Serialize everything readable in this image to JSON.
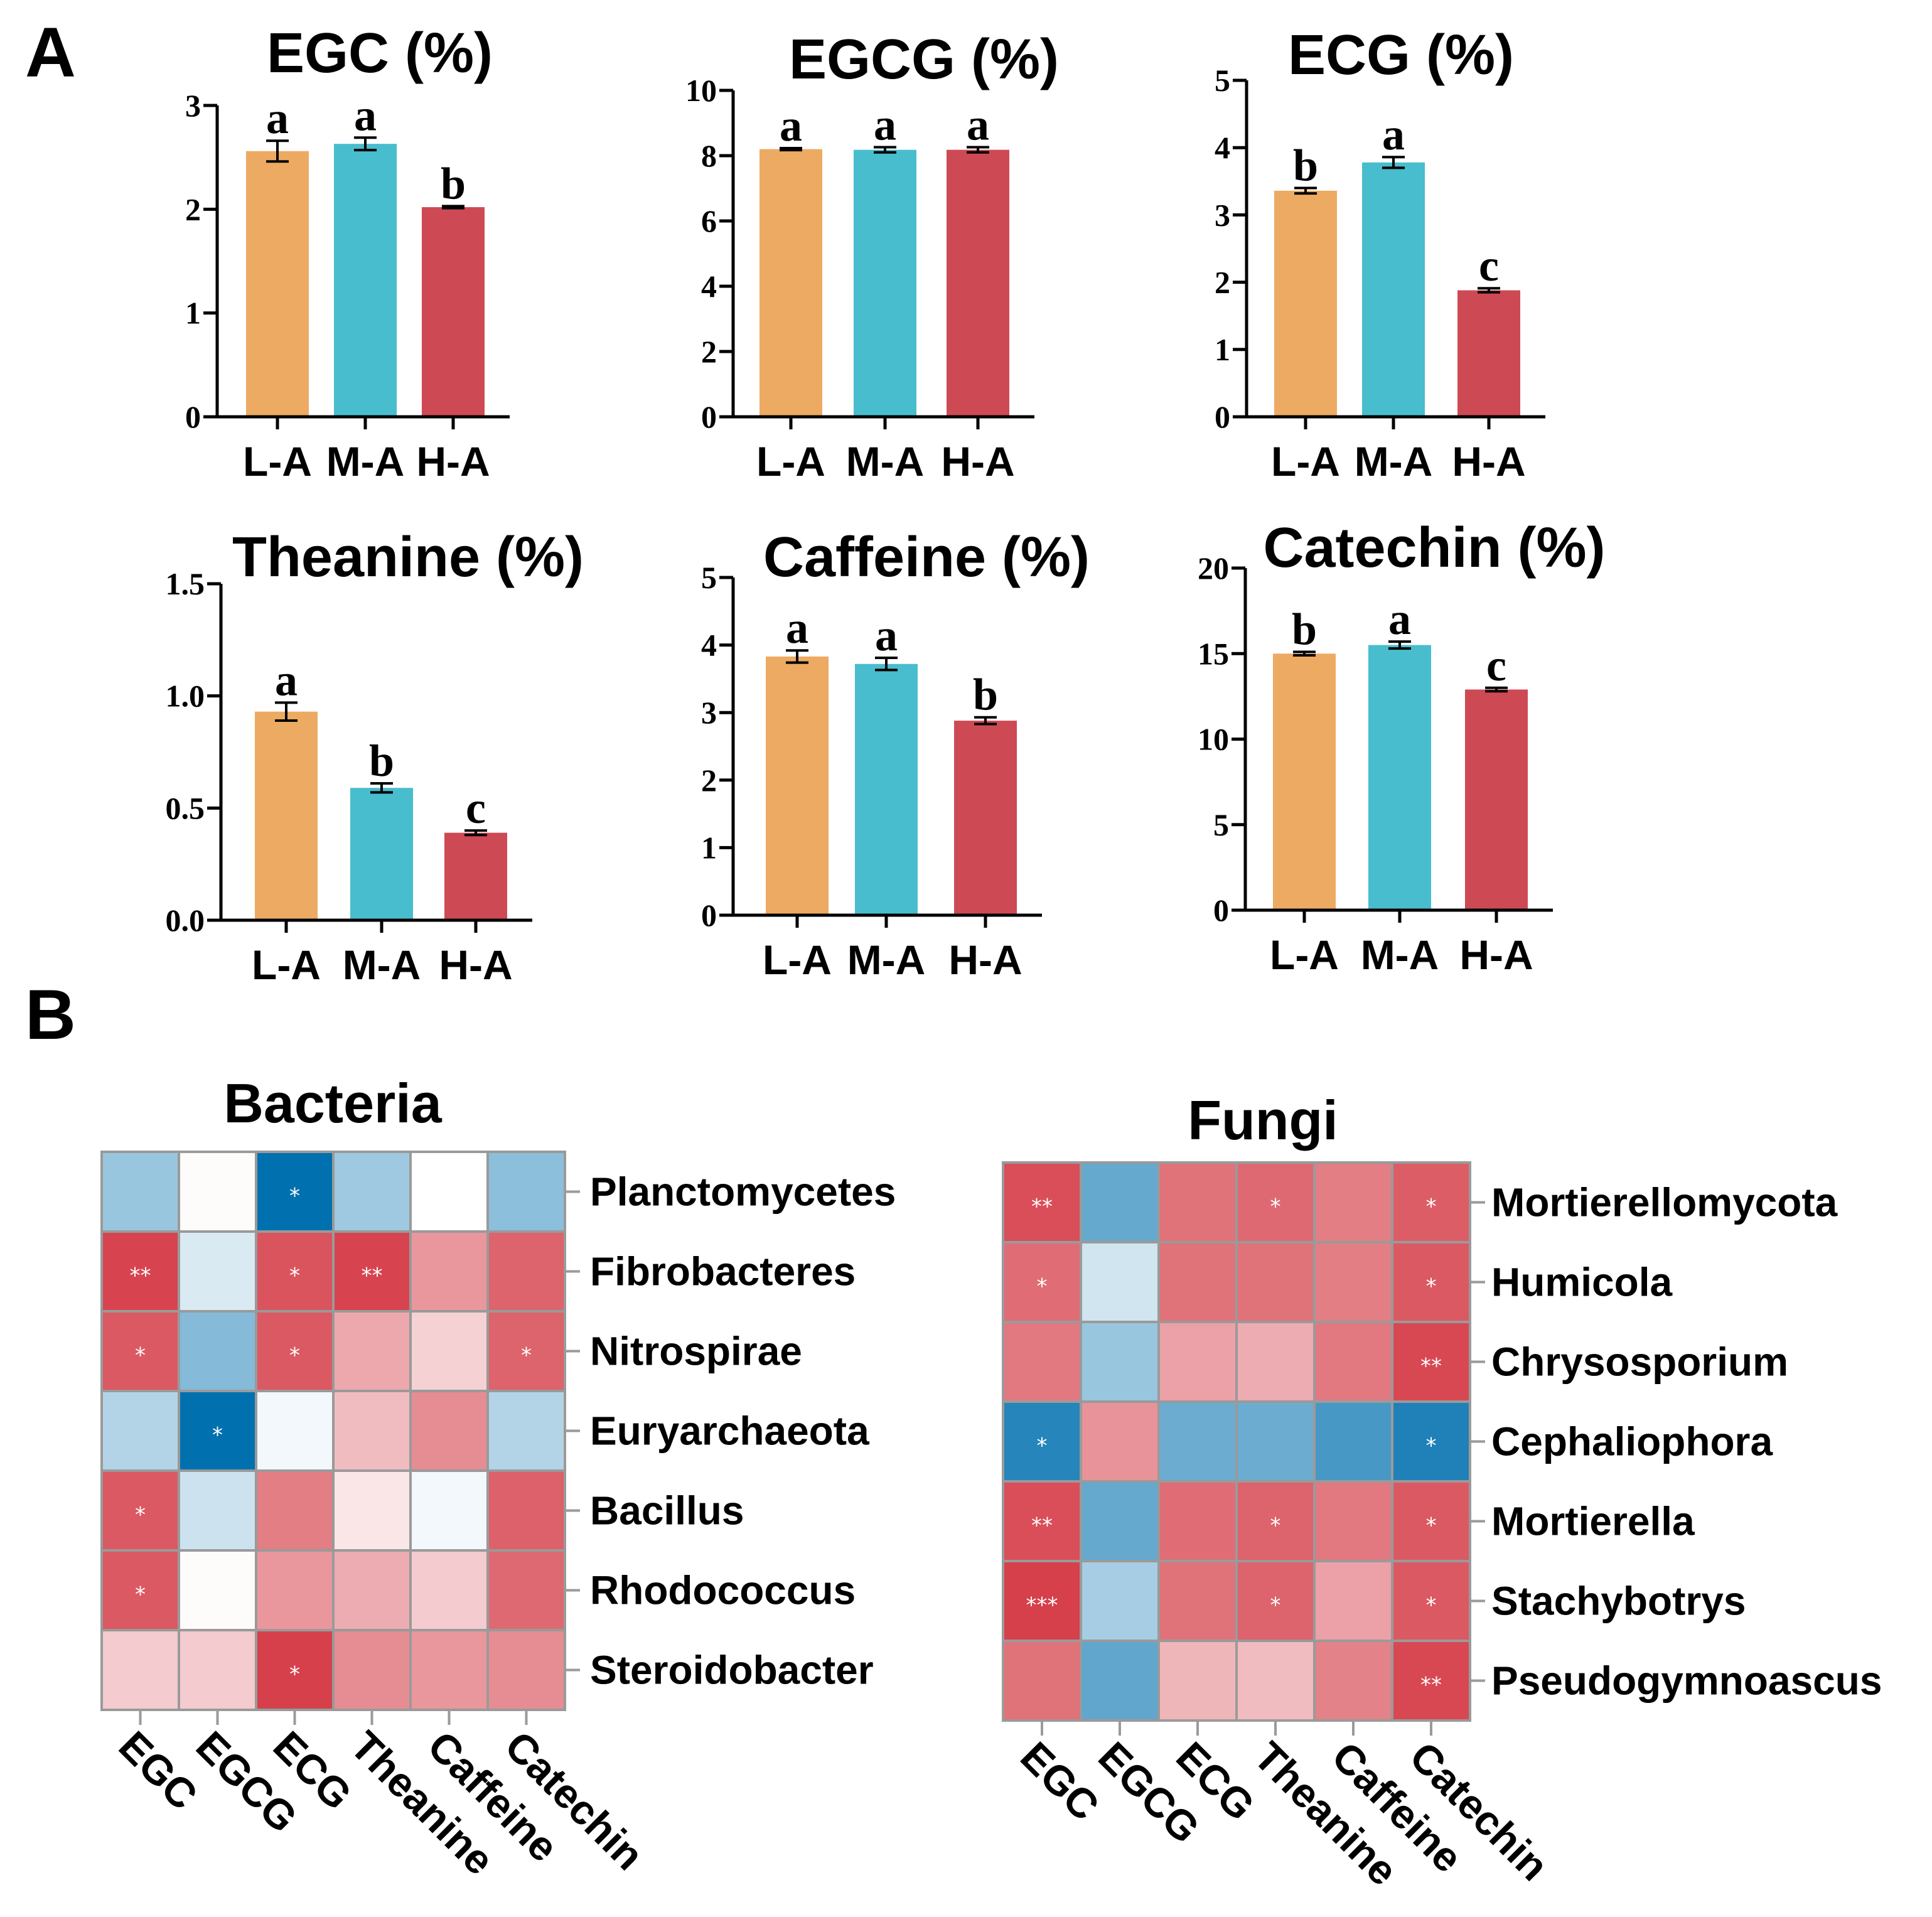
{
  "figure": {
    "panel_a_label": "A",
    "panel_b_label": "B"
  },
  "colors": {
    "L-A": "#EDAA63",
    "M-A": "#48BDCD",
    "H-A": "#CD4A55",
    "heat_neg": "#0070AE",
    "heat_pos": "#D22F3B",
    "heat_grid": "#9A9A9A"
  },
  "chart_data": [
    {
      "type": "bar",
      "title": "EGC (%)",
      "categories": [
        "L-A",
        "M-A",
        "H-A"
      ],
      "values": [
        2.56,
        2.63,
        2.02
      ],
      "errors": [
        0.1,
        0.06,
        0.01
      ],
      "letters": [
        "a",
        "a",
        "b"
      ],
      "ylim": [
        0,
        3
      ],
      "yticks": [
        "0",
        "1",
        "2",
        "3"
      ],
      "ytick_values": [
        0,
        1,
        2,
        3
      ]
    },
    {
      "type": "bar",
      "title": "EGCG (%)",
      "categories": [
        "L-A",
        "M-A",
        "H-A"
      ],
      "values": [
        8.2,
        8.18,
        8.18
      ],
      "errors": [
        0.03,
        0.08,
        0.08
      ],
      "letters": [
        "a",
        "a",
        "a"
      ],
      "ylim": [
        0,
        10
      ],
      "yticks": [
        "0",
        "2",
        "4",
        "6",
        "8",
        "10"
      ],
      "ytick_values": [
        0,
        2,
        4,
        6,
        8,
        10
      ]
    },
    {
      "type": "bar",
      "title": "ECG (%)",
      "categories": [
        "L-A",
        "M-A",
        "H-A"
      ],
      "values": [
        3.36,
        3.78,
        1.88
      ],
      "errors": [
        0.04,
        0.08,
        0.03
      ],
      "letters": [
        "b",
        "a",
        "c"
      ],
      "ylim": [
        0,
        5
      ],
      "yticks": [
        "0",
        "1",
        "2",
        "3",
        "4",
        "5"
      ],
      "ytick_values": [
        0,
        1,
        2,
        3,
        4,
        5
      ]
    },
    {
      "type": "bar",
      "title": "Theanine (%)",
      "categories": [
        "L-A",
        "M-A",
        "H-A"
      ],
      "values": [
        0.93,
        0.59,
        0.39
      ],
      "errors": [
        0.04,
        0.02,
        0.01
      ],
      "letters": [
        "a",
        "b",
        "c"
      ],
      "ylim": [
        0,
        1.5
      ],
      "yticks": [
        "0.0",
        "0.5",
        "1.0",
        "1.5"
      ],
      "ytick_values": [
        0,
        0.5,
        1.0,
        1.5
      ]
    },
    {
      "type": "bar",
      "title": "Caffeine (%)",
      "categories": [
        "L-A",
        "M-A",
        "H-A"
      ],
      "values": [
        3.83,
        3.72,
        2.88
      ],
      "errors": [
        0.09,
        0.09,
        0.05
      ],
      "letters": [
        "a",
        "a",
        "b"
      ],
      "ylim": [
        0,
        5
      ],
      "yticks": [
        "0",
        "1",
        "2",
        "3",
        "4",
        "5"
      ],
      "ytick_values": [
        0,
        1,
        2,
        3,
        4,
        5
      ]
    },
    {
      "type": "bar",
      "title": "Catechin (%)",
      "categories": [
        "L-A",
        "M-A",
        "H-A"
      ],
      "values": [
        15.0,
        15.5,
        12.9
      ],
      "errors": [
        0.1,
        0.2,
        0.1
      ],
      "letters": [
        "b",
        "a",
        "c"
      ],
      "ylim": [
        0,
        20
      ],
      "yticks": [
        "0",
        "5",
        "10",
        "15",
        "20"
      ],
      "ytick_values": [
        0,
        5,
        10,
        15,
        20
      ]
    },
    {
      "type": "heatmap",
      "title": "Bacteria",
      "columns": [
        "EGC",
        "EGCG",
        "ECG",
        "Theanine",
        "Caffeine",
        "Catechin"
      ],
      "rows": [
        "Planctomycetes",
        "Fibrobacteres",
        "Nitrospirae",
        "Euryarchaeota",
        "Bacillus",
        "Rhodococcus",
        "Steroidobacter"
      ],
      "values": [
        [
          -0.4,
          0.02,
          -1.0,
          -0.38,
          0.0,
          -0.45
        ],
        [
          0.9,
          -0.15,
          0.82,
          0.9,
          0.5,
          0.75
        ],
        [
          0.8,
          -0.48,
          0.8,
          0.42,
          0.22,
          0.75
        ],
        [
          -0.3,
          -1.0,
          -0.05,
          0.32,
          0.55,
          -0.3
        ],
        [
          0.8,
          -0.2,
          0.62,
          0.12,
          -0.05,
          0.76
        ],
        [
          0.8,
          0.02,
          0.5,
          0.4,
          0.25,
          0.72
        ],
        [
          0.25,
          0.25,
          0.92,
          0.55,
          0.5,
          0.55
        ]
      ],
      "stars": [
        [
          "",
          "",
          "*",
          "",
          "",
          ""
        ],
        [
          "**",
          "",
          "*",
          "**",
          "",
          ""
        ],
        [
          "*",
          "",
          "*",
          "",
          "",
          "*"
        ],
        [
          "",
          "*",
          "",
          "",
          "",
          ""
        ],
        [
          "*",
          "",
          "",
          "",
          "",
          ""
        ],
        [
          "*",
          "",
          "",
          "",
          "",
          ""
        ],
        [
          "",
          "",
          "*",
          "",
          "",
          ""
        ]
      ]
    },
    {
      "type": "heatmap",
      "title": "Fungi",
      "columns": [
        "EGC",
        "EGCG",
        "ECG",
        "Theanine",
        "Caffeine",
        "Catechin"
      ],
      "rows": [
        "Mortierellomycota",
        "Humicola",
        "Chrysosporium",
        "Cephaliophora",
        "Mortierella",
        "Stachybotrys",
        "Pseudogymnoascus"
      ],
      "values": [
        [
          0.85,
          -0.6,
          0.68,
          0.72,
          0.62,
          0.78
        ],
        [
          0.7,
          -0.18,
          0.68,
          0.68,
          0.62,
          0.8
        ],
        [
          0.65,
          -0.4,
          0.45,
          0.4,
          0.65,
          0.88
        ],
        [
          -0.85,
          0.52,
          -0.58,
          -0.58,
          -0.72,
          -0.88
        ],
        [
          0.85,
          -0.6,
          0.7,
          0.75,
          0.65,
          0.8
        ],
        [
          0.92,
          -0.35,
          0.68,
          0.75,
          0.45,
          0.8
        ],
        [
          0.68,
          -0.62,
          0.35,
          0.32,
          0.6,
          0.88
        ]
      ],
      "stars": [
        [
          "**",
          "",
          "",
          "*",
          "",
          "*"
        ],
        [
          "*",
          "",
          "",
          "",
          "",
          "*"
        ],
        [
          "",
          "",
          "",
          "",
          "",
          "**"
        ],
        [
          "*",
          "",
          "",
          "",
          "",
          "*"
        ],
        [
          "**",
          "",
          "",
          "*",
          "",
          "*"
        ],
        [
          "***",
          "",
          "",
          "*",
          "",
          "*"
        ],
        [
          "",
          "",
          "",
          "",
          "",
          "**"
        ]
      ]
    }
  ]
}
